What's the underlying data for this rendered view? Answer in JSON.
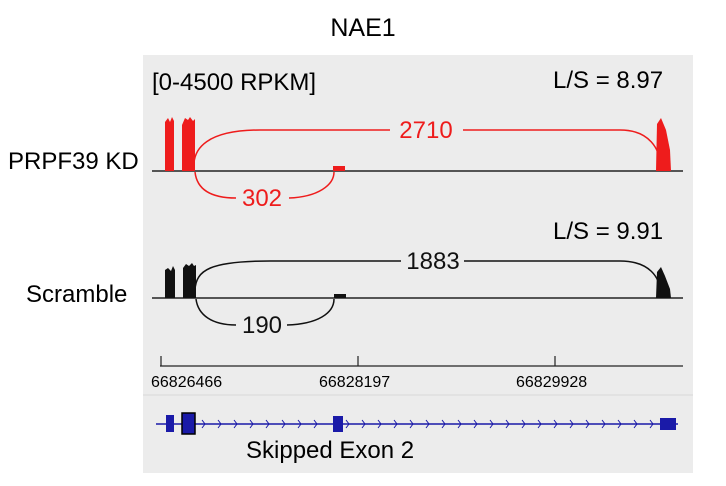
{
  "gene_name": "NAE1",
  "data_range": "[0-4500 RPKM]",
  "tracks": [
    {
      "name": "PRPF39 KD",
      "ratio": "L/S = 8.97",
      "color": "#ee1c1c",
      "junction_long": "2710",
      "junction_short": "302"
    },
    {
      "name": "Scramble",
      "ratio": "L/S = 9.91",
      "color": "#111111",
      "junction_long": "1883",
      "junction_short": "190"
    }
  ],
  "ruler": {
    "positions": [
      "66826466",
      "66828197",
      "66829928"
    ]
  },
  "gene_model": {
    "label": "Skipped Exon 2",
    "color": "#1a1aa8"
  },
  "colors": {
    "panel_background": "#ececec",
    "baseline": "#555555"
  }
}
